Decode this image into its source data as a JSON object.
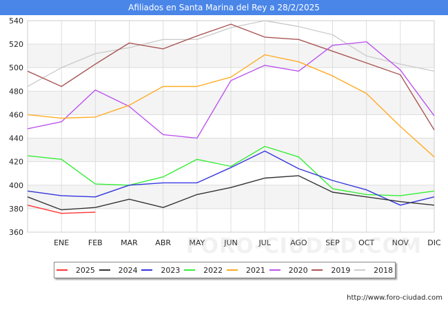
{
  "header": {
    "title": "Afiliados en Santa Marina del Rey a 28/2/2025"
  },
  "footer": {
    "source": "http://www.foro-ciudad.com"
  },
  "watermark": "FORO-CIUDAD.COM",
  "chart_data": {
    "type": "line",
    "title": "Afiliados en Santa Marina del Rey a 28/2/2025",
    "categories": [
      "",
      "ENE",
      "FEB",
      "MAR",
      "ABR",
      "MAY",
      "JUN",
      "JUL",
      "AGO",
      "SEP",
      "OCT",
      "NOV",
      "DIC"
    ],
    "ylim": [
      360,
      540
    ],
    "yticks": [
      360,
      380,
      400,
      420,
      440,
      460,
      480,
      500,
      520,
      540
    ],
    "grid": true,
    "legend_position": "bottom",
    "series": [
      {
        "name": "2025",
        "color": "#ff3333",
        "values": [
          383,
          376,
          377,
          null,
          null,
          null,
          null,
          null,
          null,
          null,
          null,
          null,
          null
        ]
      },
      {
        "name": "2024",
        "color": "#333333",
        "values": [
          390,
          379,
          381,
          388,
          381,
          392,
          398,
          406,
          408,
          394,
          390,
          386,
          383
        ]
      },
      {
        "name": "2023",
        "color": "#3333dd",
        "values": [
          395,
          391,
          390,
          400,
          402,
          402,
          415,
          429,
          414,
          404,
          396,
          383,
          390
        ]
      },
      {
        "name": "2022",
        "color": "#33ee33",
        "values": [
          425,
          422,
          401,
          400,
          407,
          422,
          416,
          433,
          424,
          397,
          392,
          391,
          395
        ]
      },
      {
        "name": "2021",
        "color": "#ffaa22",
        "values": [
          460,
          457,
          458,
          468,
          484,
          484,
          492,
          511,
          505,
          493,
          478,
          450,
          424
        ]
      },
      {
        "name": "2020",
        "color": "#bb55ee",
        "values": [
          448,
          454,
          481,
          467,
          443,
          440,
          489,
          502,
          497,
          519,
          522,
          498,
          459
        ]
      },
      {
        "name": "2019",
        "color": "#aa5555",
        "values": [
          497,
          484,
          503,
          521,
          516,
          527,
          537,
          526,
          524,
          514,
          504,
          494,
          447
        ]
      },
      {
        "name": "2018",
        "color": "#cccccc",
        "values": [
          484,
          500,
          512,
          517,
          524,
          524,
          534,
          540,
          535,
          528,
          510,
          503,
          497
        ]
      }
    ]
  }
}
